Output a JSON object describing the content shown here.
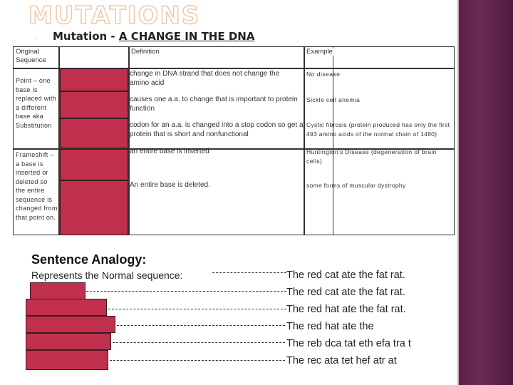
{
  "slide": {
    "title": "MUTATIONS",
    "bullet": "·",
    "subtitle_prefix": "Mutation - ",
    "subtitle_underlined": "A CHANGE IN THE DNA"
  },
  "table": {
    "headers": {
      "original": "Original Sequence",
      "definition": "Definition",
      "example": "Example"
    },
    "point_label": "Point – one base is replaced with a different base aka Substitution",
    "frameshift_label": "Frameshift – a base is inserted or deleted so the entire sequence is changed from that point on.",
    "rows": [
      {
        "definition": "change in DNA strand that does not change the amino acid",
        "example": "No disease"
      },
      {
        "definition": "causes one a.a. to change that is important to protein function",
        "example": "Sickle cell anemia"
      },
      {
        "definition": "codon for an a.a. is changed into a stop codon so get a protein that is short and nonfunctional",
        "example": "Cystic fibrosis (protein produced has only the first 493 amino acids of the normal chain of 1480)"
      },
      {
        "definition": "an entire base is inserted",
        "example": "Huntington's Disease (degeneration of brain cells)"
      },
      {
        "definition": "An entire base is deleted.",
        "example": "some forms of muscular dystrophy"
      }
    ]
  },
  "analogy": {
    "title": "Sentence Analogy:",
    "normal_label": "Represents the Normal sequence:",
    "sentences": [
      "The red cat ate the fat rat.",
      "The red cat ate the fat rat.",
      "The red hat ate the fat rat.",
      "The red hat ate the",
      "The reb dca tat eth efa tra t",
      "The rec ata tet hef atr at"
    ]
  },
  "colors": {
    "answer_box": "#c0304c",
    "sidebar": "#5e1f48",
    "title_outline": "#f0c8a8"
  }
}
